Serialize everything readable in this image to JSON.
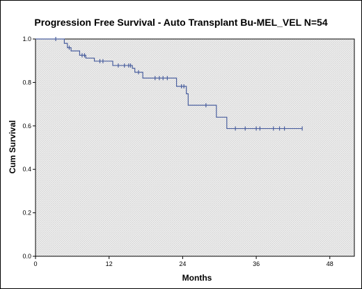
{
  "chart_data": {
    "type": "line",
    "title": "Progression Free Survival - Auto Transplant Bu-MEL_VEL   N=54",
    "xlabel": "Months",
    "ylabel": "Cum Survival",
    "xlim": [
      0,
      52
    ],
    "ylim": [
      0,
      1.0
    ],
    "x_ticks": [
      0,
      12,
      24,
      36,
      48
    ],
    "x_tick_labels": [
      "0",
      "12",
      "24",
      "36",
      "48"
    ],
    "y_ticks": [
      0,
      0.2,
      0.4,
      0.6,
      0.8,
      1.0
    ],
    "y_tick_labels": [
      "0.0",
      "0.2",
      "0.4",
      "0.6",
      "0.8",
      "1.0"
    ],
    "grid": false,
    "legend": "none",
    "line_color": "#4a5f9e",
    "plot_background": "#e9e9e9",
    "steps": [
      {
        "x": 0,
        "y": 1.0
      },
      {
        "x": 4.7,
        "y": 0.98
      },
      {
        "x": 5.2,
        "y": 0.96
      },
      {
        "x": 5.8,
        "y": 0.945
      },
      {
        "x": 7.2,
        "y": 0.925
      },
      {
        "x": 8.2,
        "y": 0.912
      },
      {
        "x": 9.6,
        "y": 0.898
      },
      {
        "x": 12.6,
        "y": 0.878
      },
      {
        "x": 15.8,
        "y": 0.865
      },
      {
        "x": 16.2,
        "y": 0.847
      },
      {
        "x": 17.5,
        "y": 0.82
      },
      {
        "x": 23.0,
        "y": 0.782
      },
      {
        "x": 24.6,
        "y": 0.748
      },
      {
        "x": 24.9,
        "y": 0.695
      },
      {
        "x": 29.5,
        "y": 0.64
      },
      {
        "x": 31.2,
        "y": 0.588
      }
    ],
    "end_x": 43.5,
    "censored": [
      {
        "x": 3.3,
        "y": 1.0
      },
      {
        "x": 5.5,
        "y": 0.96
      },
      {
        "x": 7.6,
        "y": 0.925
      },
      {
        "x": 8.0,
        "y": 0.925
      },
      {
        "x": 10.5,
        "y": 0.898
      },
      {
        "x": 11.0,
        "y": 0.898
      },
      {
        "x": 13.5,
        "y": 0.878
      },
      {
        "x": 14.5,
        "y": 0.878
      },
      {
        "x": 15.2,
        "y": 0.878
      },
      {
        "x": 15.5,
        "y": 0.878
      },
      {
        "x": 16.8,
        "y": 0.847
      },
      {
        "x": 19.5,
        "y": 0.82
      },
      {
        "x": 20.2,
        "y": 0.82
      },
      {
        "x": 20.8,
        "y": 0.82
      },
      {
        "x": 21.5,
        "y": 0.82
      },
      {
        "x": 23.8,
        "y": 0.782
      },
      {
        "x": 24.2,
        "y": 0.782
      },
      {
        "x": 27.8,
        "y": 0.695
      },
      {
        "x": 32.6,
        "y": 0.588
      },
      {
        "x": 34.2,
        "y": 0.588
      },
      {
        "x": 36.0,
        "y": 0.588
      },
      {
        "x": 36.6,
        "y": 0.588
      },
      {
        "x": 38.8,
        "y": 0.588
      },
      {
        "x": 39.8,
        "y": 0.588
      },
      {
        "x": 40.6,
        "y": 0.588
      },
      {
        "x": 43.5,
        "y": 0.588
      }
    ]
  }
}
